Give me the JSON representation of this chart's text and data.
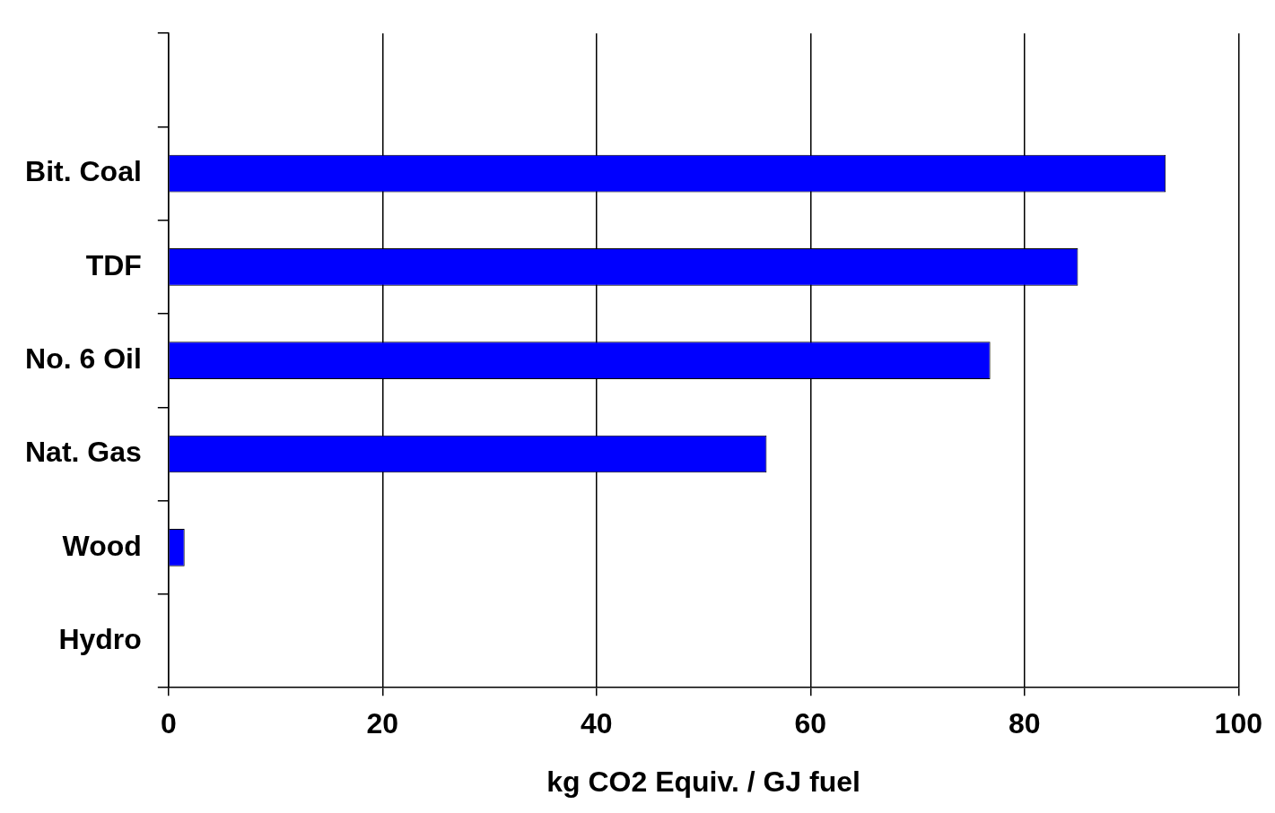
{
  "chart_data": {
    "type": "bar",
    "orientation": "horizontal",
    "xlabel": "kg CO2 Equiv. / GJ fuel",
    "categories": [
      null,
      "Bit. Coal",
      "TDF",
      "No. 6 Oil",
      "Nat. Gas",
      "Wood",
      "Hydro"
    ],
    "values": [
      null,
      93.2,
      85,
      76.8,
      55.9,
      1.5,
      0
    ],
    "color": "#0000ff",
    "xlim": [
      0,
      100
    ],
    "xticks": [
      0,
      20,
      40,
      60,
      80,
      100
    ],
    "grid": "x",
    "legend": false
  }
}
